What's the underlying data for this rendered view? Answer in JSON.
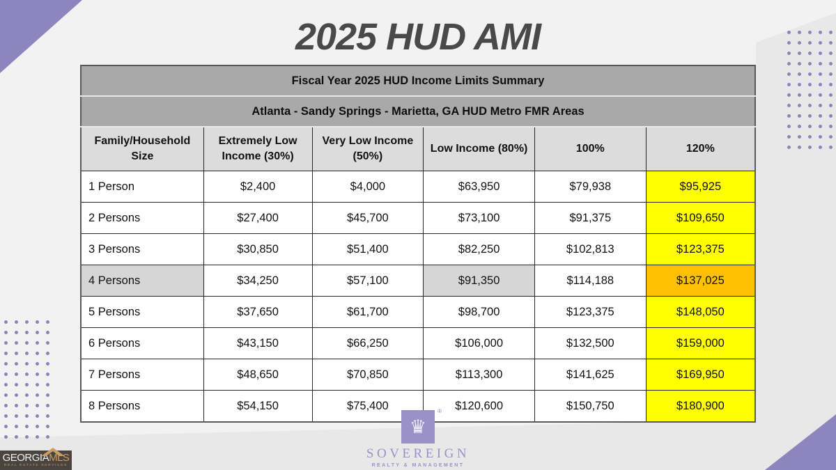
{
  "page_title": "2025 HUD AMI",
  "colors": {
    "accent_purple": "#8d85bd",
    "band_gray": "#a9a9a9",
    "column_header_gray": "#dcdcdc",
    "highlight_gray": "#d6d6d6",
    "col_120_yellow": "#ffff00",
    "highlight_orange": "#ffc000"
  },
  "table": {
    "title": "Fiscal Year 2025 HUD Income Limits Summary",
    "subtitle": "Atlanta - Sandy Springs - Marietta, GA HUD Metro FMR Areas",
    "columns": [
      "Family/Household Size",
      "Extremely Low Income (30%)",
      "Very Low Income (50%)",
      "Low Income (80%)",
      "100%",
      "120%"
    ],
    "rows": [
      {
        "label": "1 Person",
        "values": [
          "$2,400",
          "$4,000",
          "$63,950",
          "$79,938",
          "$95,925"
        ],
        "highlighted": false
      },
      {
        "label": "2 Persons",
        "values": [
          "$27,400",
          "$45,700",
          "$73,100",
          "$91,375",
          "$109,650"
        ],
        "highlighted": false
      },
      {
        "label": "3 Persons",
        "values": [
          "$30,850",
          "$51,400",
          "$82,250",
          "$102,813",
          "$123,375"
        ],
        "highlighted": false
      },
      {
        "label": "4 Persons",
        "values": [
          "$34,250",
          "$57,100",
          "$91,350",
          "$114,188",
          "$137,025"
        ],
        "highlighted": true
      },
      {
        "label": "5 Persons",
        "values": [
          "$37,650",
          "$61,700",
          "$98,700",
          "$123,375",
          "$148,050"
        ],
        "highlighted": false
      },
      {
        "label": "6 Persons",
        "values": [
          "$43,150",
          "$66,250",
          "$106,000",
          "$132,500",
          "$159,000"
        ],
        "highlighted": false
      },
      {
        "label": "7 Persons",
        "values": [
          "$48,650",
          "$70,850",
          "$113,300",
          "$141,625",
          "$169,950"
        ],
        "highlighted": false
      },
      {
        "label": "8 Persons",
        "values": [
          "$54,150",
          "$75,400",
          "$120,600",
          "$150,750",
          "$180,900"
        ],
        "highlighted": false
      }
    ]
  },
  "footer": {
    "sovereign": {
      "registered": "®",
      "name": "SOVEREIGN",
      "subtext": "REALTY & MANAGEMENT"
    },
    "georgiamls": {
      "name_part1": "GEORGIA",
      "name_part2": "MLS",
      "subtext": "REAL ESTATE SERVICES"
    }
  }
}
